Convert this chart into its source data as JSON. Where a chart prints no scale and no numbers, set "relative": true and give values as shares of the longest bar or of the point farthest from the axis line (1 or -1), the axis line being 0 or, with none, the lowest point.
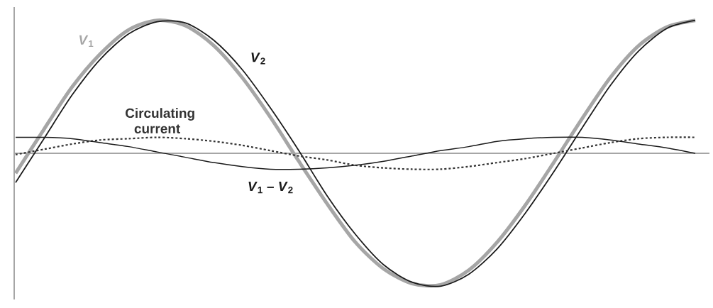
{
  "chart_data": {
    "type": "line",
    "relative": true,
    "marker": "none",
    "categories": [
      null,
      null,
      null,
      null,
      null,
      null,
      null,
      null,
      null,
      null,
      null,
      null,
      null,
      null,
      null,
      null,
      null,
      null,
      null,
      null,
      null,
      null,
      null,
      null,
      null
    ],
    "series": [
      {
        "name": "*V*$_{1}$",
        "color": "#a6a6a6",
        "line_style": "solid",
        "values": [
          -0.15,
          0.18,
          0.5,
          0.75,
          0.93,
          1.0,
          0.96,
          0.81,
          0.57,
          0.27,
          -0.06,
          -0.38,
          -0.67,
          -0.87,
          -0.98,
          -0.99,
          -0.88,
          -0.67,
          -0.39,
          -0.07,
          0.26,
          0.57,
          0.81,
          0.95,
          1.0
        ]
      },
      {
        "name": "*V*$_{2}$",
        "color": "#1a1a1a",
        "line_style": "solid",
        "values": [
          -0.22,
          0.11,
          0.44,
          0.71,
          0.9,
          0.99,
          0.98,
          0.85,
          0.63,
          0.34,
          0.02,
          -0.32,
          -0.61,
          -0.84,
          -0.97,
          -1.0,
          -0.91,
          -0.72,
          -0.45,
          -0.14,
          0.19,
          0.51,
          0.77,
          0.94,
          1.0
        ]
      },
      {
        "name": "Circulating current",
        "color": "#333333",
        "line_style": "dashed",
        "values": [
          -0.01,
          0.03,
          0.07,
          0.1,
          0.11,
          0.12,
          0.11,
          0.09,
          0.06,
          0.02,
          -0.02,
          -0.05,
          -0.09,
          -0.11,
          -0.12,
          -0.12,
          -0.1,
          -0.07,
          -0.04,
          0.0,
          0.04,
          0.08,
          0.11,
          0.12,
          0.12
        ]
      },
      {
        "name": "*V*$_{1}$ – *V*$_{2}$",
        "color": "#1a1a1a",
        "line_style": "solid",
        "values": [
          0.12,
          0.12,
          0.11,
          0.08,
          0.05,
          0.01,
          -0.03,
          -0.07,
          -0.1,
          -0.12,
          -0.12,
          -0.11,
          -0.09,
          -0.06,
          -0.02,
          0.02,
          0.05,
          0.09,
          0.11,
          0.12,
          0.12,
          0.1,
          0.07,
          0.04,
          0.0
        ]
      }
    ]
  }
}
